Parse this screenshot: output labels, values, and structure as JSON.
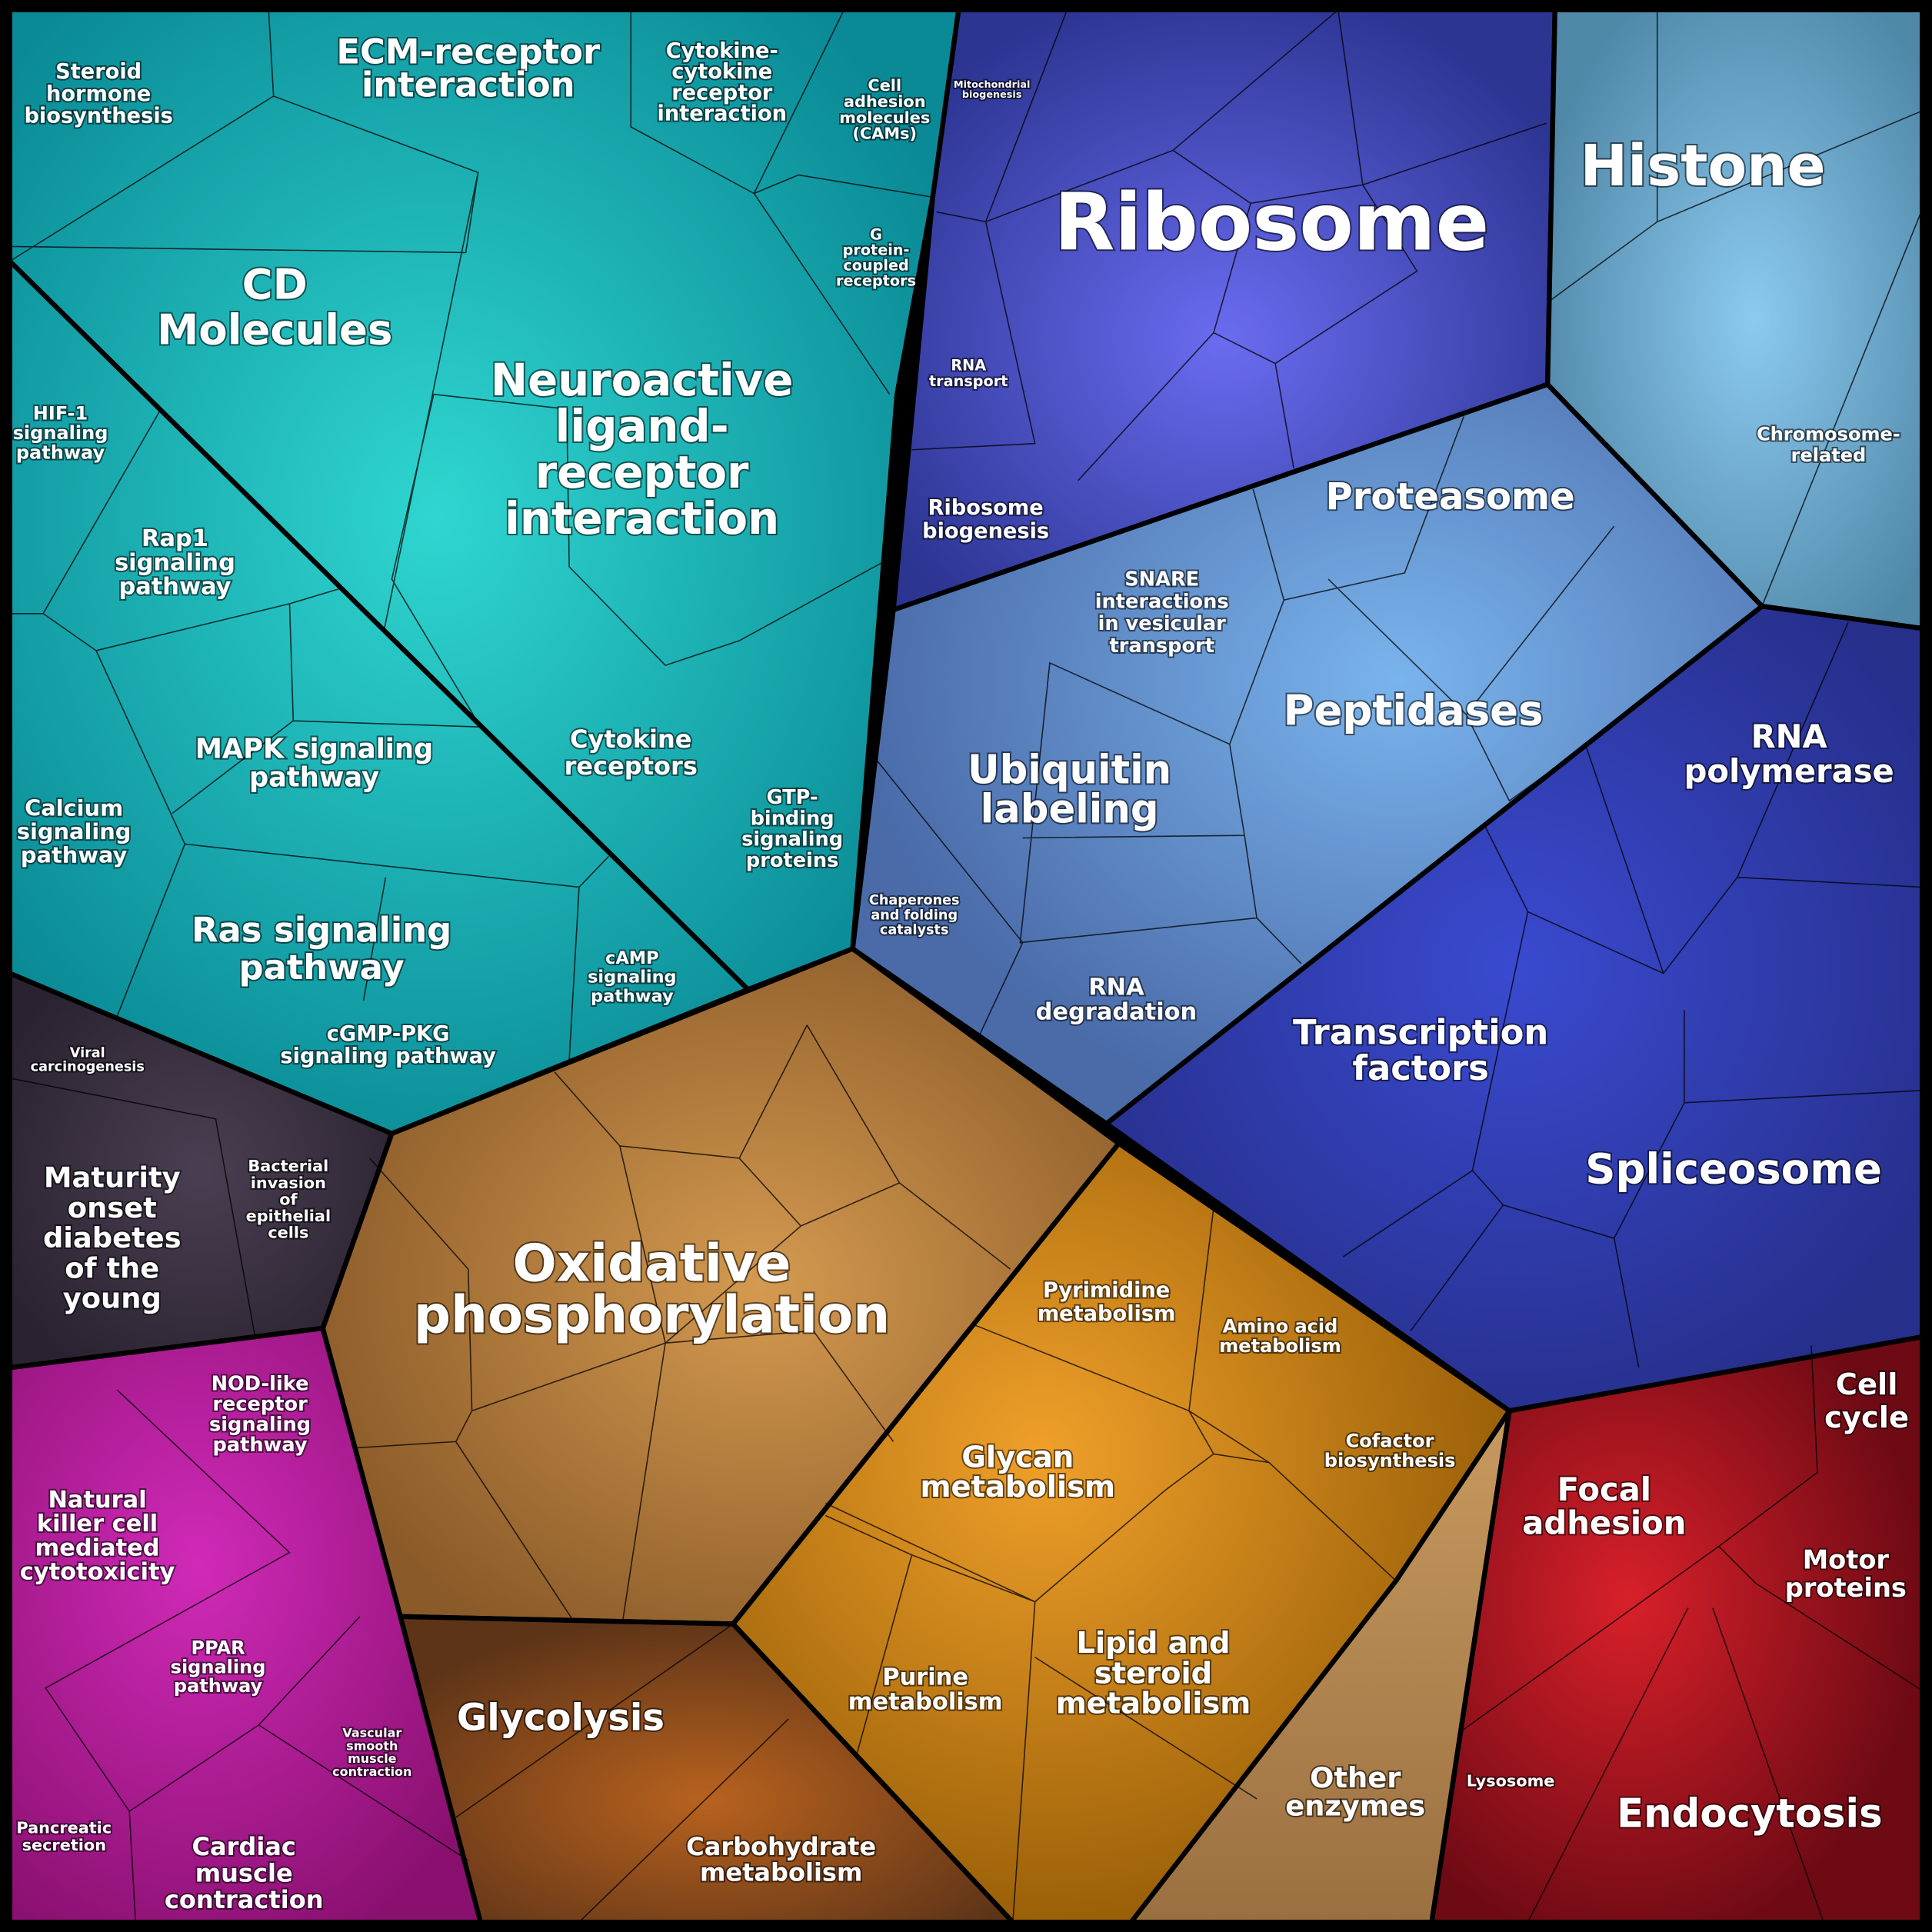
{
  "cells": [
    {
      "lines": [
        "Steroid",
        "hormone",
        "biosynthesis"
      ]
    },
    {
      "lines": [
        "ECM-receptor",
        "interaction"
      ]
    },
    {
      "lines": [
        "Cytokine-",
        "cytokine",
        "receptor",
        "interaction"
      ]
    },
    {
      "lines": [
        "Cell",
        "adhesion",
        "molecules",
        "(CAMs)"
      ]
    },
    {
      "lines": [
        "Mitochondrial",
        "biogenesis"
      ]
    },
    {
      "lines": [
        "Ribosome"
      ]
    },
    {
      "lines": [
        "Histone"
      ]
    },
    {
      "lines": [
        "G",
        "protein-",
        "coupled",
        "receptors"
      ]
    },
    {
      "lines": [
        "CD",
        "Molecules"
      ]
    },
    {
      "lines": [
        "Neuroactive",
        "ligand-",
        "receptor",
        "interaction"
      ]
    },
    {
      "lines": [
        "RNA",
        "transport"
      ]
    },
    {
      "lines": [
        "HIF-1",
        "signaling",
        "pathway"
      ]
    },
    {
      "lines": [
        "Chromosome-",
        "related"
      ]
    },
    {
      "lines": [
        "Proteasome"
      ]
    },
    {
      "lines": [
        "Ribosome",
        "biogenesis"
      ]
    },
    {
      "lines": [
        "Rap1",
        "signaling",
        "pathway"
      ]
    },
    {
      "lines": [
        "SNARE",
        "interactions",
        "in vesicular",
        "transport"
      ]
    },
    {
      "lines": [
        "Peptidases"
      ]
    },
    {
      "lines": [
        "RNA",
        "polymerase"
      ]
    },
    {
      "lines": [
        "Cytokine",
        "receptors"
      ]
    },
    {
      "lines": [
        "MAPK signaling",
        "pathway"
      ]
    },
    {
      "lines": [
        "Ubiquitin",
        "labeling"
      ]
    },
    {
      "lines": [
        "GTP-",
        "binding",
        "signaling",
        "proteins"
      ]
    },
    {
      "lines": [
        "Calcium",
        "signaling",
        "pathway"
      ]
    },
    {
      "lines": [
        "Chaperones",
        "and folding",
        "catalysts"
      ]
    },
    {
      "lines": [
        "Ras signaling",
        "pathway"
      ]
    },
    {
      "lines": [
        "cAMP",
        "signaling",
        "pathway"
      ]
    },
    {
      "lines": [
        "RNA",
        "degradation"
      ]
    },
    {
      "lines": [
        "Transcription",
        "factors"
      ]
    },
    {
      "lines": [
        "cGMP-PKG",
        "signaling pathway"
      ]
    },
    {
      "lines": [
        "Viral",
        "carcinogenesis"
      ]
    },
    {
      "lines": [
        "Bacterial",
        "invasion",
        "of",
        "epithelial",
        "cells"
      ]
    },
    {
      "lines": [
        "Spliceosome"
      ]
    },
    {
      "lines": [
        "Maturity",
        "onset",
        "diabetes",
        "of the",
        "young"
      ]
    },
    {
      "lines": [
        "Oxidative",
        "phosphorylation"
      ]
    },
    {
      "lines": [
        "Pyrimidine",
        "metabolism"
      ]
    },
    {
      "lines": [
        "Amino acid",
        "metabolism"
      ]
    },
    {
      "lines": [
        "Cell",
        "cycle"
      ]
    },
    {
      "lines": [
        "NOD-like",
        "receptor",
        "signaling",
        "pathway"
      ]
    },
    {
      "lines": [
        "Cofactor",
        "biosynthesis"
      ]
    },
    {
      "lines": [
        "Glycan",
        "metabolism"
      ]
    },
    {
      "lines": [
        "Focal",
        "adhesion"
      ]
    },
    {
      "lines": [
        "Natural",
        "killer cell",
        "mediated",
        "cytotoxicity"
      ]
    },
    {
      "lines": [
        "Motor",
        "proteins"
      ]
    },
    {
      "lines": [
        "Lipid and",
        "steroid",
        "metabolism"
      ]
    },
    {
      "lines": [
        "PPAR",
        "signaling",
        "pathway"
      ]
    },
    {
      "lines": [
        "Purine",
        "metabolism"
      ]
    },
    {
      "lines": [
        "Glycolysis"
      ]
    },
    {
      "lines": [
        "Vascular",
        "smooth",
        "muscle",
        "contraction"
      ]
    },
    {
      "lines": [
        "Other",
        "enzymes"
      ]
    },
    {
      "lines": [
        "Lysosome"
      ]
    },
    {
      "lines": [
        "Endocytosis"
      ]
    },
    {
      "lines": [
        "Pancreatic",
        "secretion"
      ]
    },
    {
      "lines": [
        "Carbohydrate",
        "metabolism"
      ]
    },
    {
      "lines": [
        "Cardiac",
        "muscle",
        "contraction"
      ]
    }
  ]
}
